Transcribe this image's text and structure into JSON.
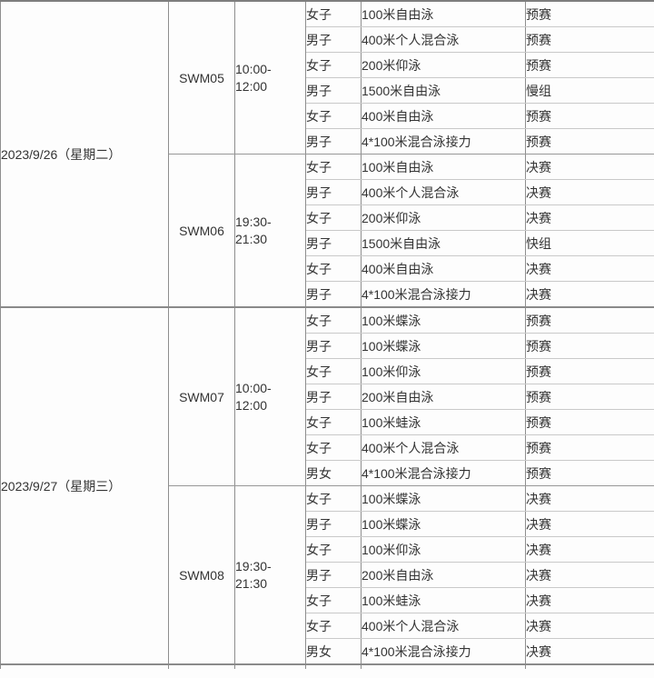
{
  "table": {
    "colors": {
      "cell_background": "#fdfdfd",
      "text": "#333333",
      "vertical_border": "#8e8e8e",
      "row_separator": "#c9c9c9",
      "session_separator": "#979797",
      "date_separator": "#8a8a8a",
      "top_border": "#7e7e7e"
    },
    "days": [
      {
        "date": "2023/9/26（星期二）",
        "sessions": [
          {
            "code": "SWM05",
            "time": [
              "10:00-",
              "12:00"
            ],
            "events": [
              {
                "gender": "女子",
                "event": "100米自由泳",
                "round": "预赛"
              },
              {
                "gender": "男子",
                "event": "400米个人混合泳",
                "round": "预赛"
              },
              {
                "gender": "女子",
                "event": "200米仰泳",
                "round": "预赛"
              },
              {
                "gender": "男子",
                "event": "1500米自由泳",
                "round": "慢组"
              },
              {
                "gender": "女子",
                "event": "400米自由泳",
                "round": "预赛"
              },
              {
                "gender": "男子",
                "event": "4*100米混合泳接力",
                "round": "预赛"
              }
            ]
          },
          {
            "code": "SWM06",
            "time": [
              "19:30-",
              "21:30"
            ],
            "events": [
              {
                "gender": "女子",
                "event": "100米自由泳",
                "round": "决赛"
              },
              {
                "gender": "男子",
                "event": "400米个人混合泳",
                "round": "决赛"
              },
              {
                "gender": "女子",
                "event": "200米仰泳",
                "round": "决赛"
              },
              {
                "gender": "男子",
                "event": "1500米自由泳",
                "round": "快组"
              },
              {
                "gender": "女子",
                "event": "400米自由泳",
                "round": "决赛"
              },
              {
                "gender": "男子",
                "event": "4*100米混合泳接力",
                "round": "决赛"
              }
            ]
          }
        ]
      },
      {
        "date": "2023/9/27（星期三）",
        "sessions": [
          {
            "code": "SWM07",
            "time": [
              "10:00-",
              "12:00"
            ],
            "events": [
              {
                "gender": "女子",
                "event": "100米蝶泳",
                "round": "预赛"
              },
              {
                "gender": "男子",
                "event": "100米蝶泳",
                "round": "预赛"
              },
              {
                "gender": "女子",
                "event": "100米仰泳",
                "round": "预赛"
              },
              {
                "gender": "男子",
                "event": "200米自由泳",
                "round": "预赛"
              },
              {
                "gender": "女子",
                "event": "100米蛙泳",
                "round": "预赛"
              },
              {
                "gender": "女子",
                "event": "400米个人混合泳",
                "round": "预赛"
              },
              {
                "gender": "男女",
                "event": "4*100米混合泳接力",
                "round": "预赛"
              }
            ]
          },
          {
            "code": "SWM08",
            "time": [
              "19:30-",
              "21:30"
            ],
            "events": [
              {
                "gender": "女子",
                "event": "100米蝶泳",
                "round": "决赛"
              },
              {
                "gender": "男子",
                "event": "100米蝶泳",
                "round": "决赛"
              },
              {
                "gender": "女子",
                "event": "100米仰泳",
                "round": "决赛"
              },
              {
                "gender": "男子",
                "event": "200米自由泳",
                "round": "决赛"
              },
              {
                "gender": "女子",
                "event": "100米蛙泳",
                "round": "决赛"
              },
              {
                "gender": "女子",
                "event": "400米个人混合泳",
                "round": "决赛"
              },
              {
                "gender": "男女",
                "event": "4*100米混合泳接力",
                "round": "决赛"
              }
            ]
          }
        ]
      }
    ]
  }
}
